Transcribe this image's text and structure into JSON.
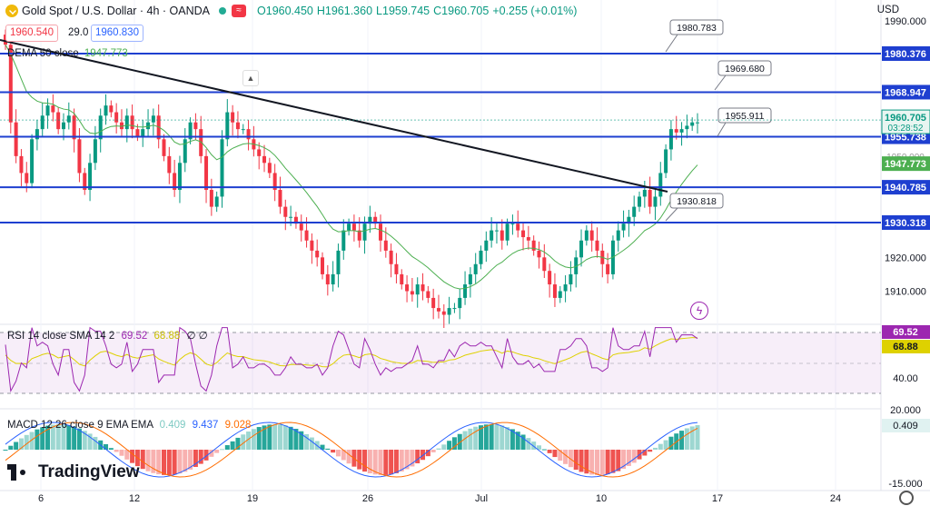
{
  "header": {
    "symbol": "Gold Spot / U.S. Dollar · 4h · OANDA",
    "open": "O1960.450",
    "high": "H1961.360",
    "low": "L1959.745",
    "close": "C1960.705",
    "change": "+0.255 (+0.01%)",
    "bid": "1960.540",
    "spread": "29.0",
    "ask": "1960.830",
    "currency": "USD"
  },
  "brand": "TradingView",
  "dema_label": "DEMA 50 close",
  "dema_value": "1947.773",
  "rsi_label": "RSI 14 close SMA 14 2",
  "rsi_value": "69.52",
  "rsi_sma": "68.88",
  "rsi_extra": "∅ ∅",
  "macd_label": "MACD 12 26 close 9 EMA EMA",
  "macd_hist": "0.409",
  "macd_line": "9.437",
  "macd_signal": "9.028",
  "colors": {
    "up": "#089981",
    "down": "#f23645",
    "hline": "#1e3fd0",
    "dema": "#4caf50",
    "rsi": "#9c27b0",
    "rsi_sma": "#ded100",
    "macd": "#2962ff",
    "signal": "#ff6d00"
  },
  "chart_data": {
    "type": "candlestick",
    "title": "Gold Spot / U.S. Dollar · 4h · OANDA",
    "y_ticks": [
      "1990.000",
      "1980.376",
      "1968.947",
      "1960.705",
      "1955.738",
      "1950.000",
      "1947.773",
      "1940.785",
      "1930.318",
      "1920.000",
      "1910.000"
    ],
    "price_ylim": [
      1900,
      1991
    ],
    "x_ticks": [
      "6",
      "12",
      "19",
      "26",
      "Jul",
      "10",
      "17",
      "24"
    ],
    "horizontal_levels": [
      1980.376,
      1968.947,
      1955.738,
      1940.785,
      1930.318
    ],
    "callouts": [
      "1980.783",
      "1969.680",
      "1955.911",
      "1930.818"
    ],
    "current_price": "1960.705",
    "countdown": "03:28:52",
    "trendline": {
      "from": "start",
      "to": 1940.0
    },
    "rsi_ticks": [
      "69.52",
      "68.88",
      "40.00",
      "20.00"
    ],
    "macd_ticks": [
      "20.000",
      "0.409",
      "-15.000"
    ],
    "closes": [
      1983,
      1960,
      1950,
      1945,
      1942,
      1955,
      1958,
      1962,
      1965,
      1963,
      1958,
      1960,
      1962,
      1955,
      1945,
      1940,
      1948,
      1955,
      1962,
      1965,
      1963,
      1960,
      1958,
      1962,
      1958,
      1956,
      1958,
      1960,
      1962,
      1955,
      1950,
      1945,
      1940,
      1948,
      1955,
      1960,
      1958,
      1950,
      1940,
      1935,
      1938,
      1955,
      1963,
      1960,
      1958,
      1958,
      1955,
      1952,
      1950,
      1948,
      1945,
      1940,
      1935,
      1932,
      1932,
      1930,
      1928,
      1925,
      1922,
      1920,
      1915,
      1912,
      1915,
      1922,
      1928,
      1930,
      1928,
      1925,
      1930,
      1932,
      1930,
      1925,
      1922,
      1918,
      1915,
      1912,
      1910,
      1909,
      1912,
      1910,
      1908,
      1905,
      1904,
      1903,
      1905,
      1905,
      1908,
      1912,
      1915,
      1918,
      1922,
      1925,
      1928,
      1928,
      1925,
      1930,
      1930,
      1928,
      1926,
      1925,
      1922,
      1920,
      1916,
      1912,
      1908,
      1910,
      1912,
      1915,
      1920,
      1925,
      1928,
      1925,
      1922,
      1918,
      1915,
      1925,
      1928,
      1930,
      1932,
      1935,
      1938,
      1940,
      1935,
      1938,
      1945,
      1952,
      1958,
      1957,
      1958,
      1959,
      1960,
      1960
    ]
  }
}
